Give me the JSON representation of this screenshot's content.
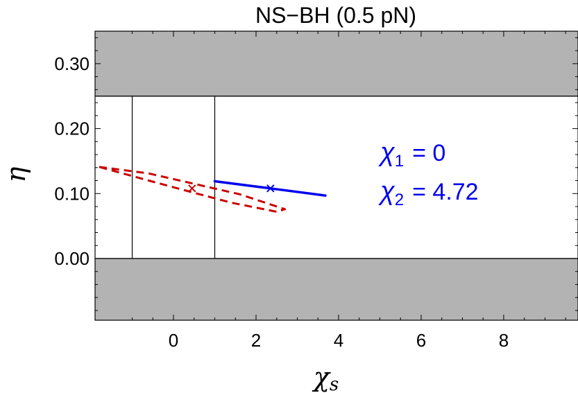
{
  "chart_data": {
    "type": "line",
    "title": "NS−BH (0.5 pN)",
    "xlabel": "χ",
    "xlabel_sub": "s",
    "ylabel": "η",
    "xlim": [
      -1.9,
      9.8
    ],
    "ylim": [
      -0.095,
      0.35
    ],
    "x_ticks": [
      0,
      2,
      4,
      6,
      8
    ],
    "y_ticks": [
      0.0,
      0.1,
      0.2,
      0.3
    ],
    "x_tick_labels": [
      "0",
      "2",
      "4",
      "6",
      "8"
    ],
    "y_tick_labels": [
      "0.00",
      "0.10",
      "0.20",
      "0.30"
    ],
    "grid": false,
    "shaded_regions": [
      {
        "y_from": 0.25,
        "y_to": 0.35,
        "color": "#b3b3b3"
      },
      {
        "y_from": -0.095,
        "y_to": 0.0,
        "color": "#b3b3b3"
      }
    ],
    "vertical_lines": [
      -1,
      1
    ],
    "series": [
      {
        "color": "#0000ee",
        "style": "solid",
        "points": [
          [
            1.0,
            0.119
          ],
          [
            2.35,
            0.108
          ],
          [
            3.68,
            0.097
          ]
        ],
        "marker": [
          2.35,
          0.108
        ]
      },
      {
        "color": "#cc0000",
        "style": "dashed",
        "points": [
          [
            -1.8,
            0.141
          ],
          [
            -0.6,
            0.131
          ],
          [
            0.5,
            0.115
          ],
          [
            1.6,
            0.099
          ],
          [
            2.7,
            0.076
          ],
          [
            2.5,
            0.072
          ],
          [
            1.4,
            0.086
          ],
          [
            0.45,
            0.102
          ],
          [
            -0.6,
            0.12
          ],
          [
            -1.8,
            0.141
          ]
        ],
        "marker": [
          0.45,
          0.108
        ]
      }
    ],
    "annotations": [
      {
        "symbol": "χ",
        "sub": "1",
        "text": "= 0",
        "color": "#0000ee"
      },
      {
        "symbol": "χ",
        "sub": "2",
        "text": "= 4.72",
        "color": "#0000ee"
      }
    ]
  }
}
